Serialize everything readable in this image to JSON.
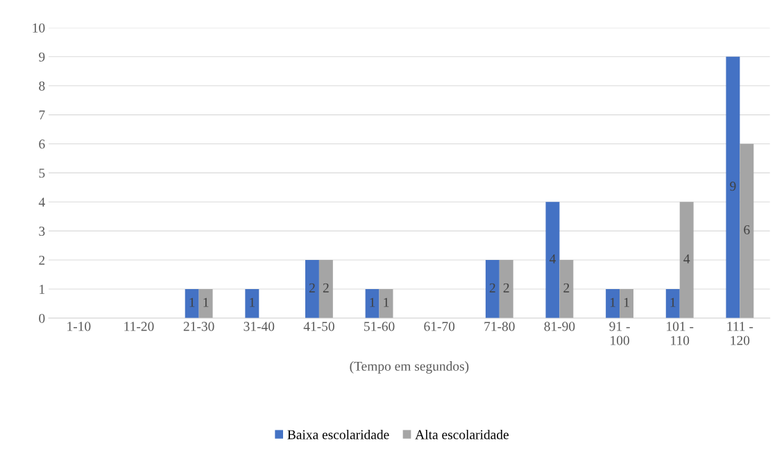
{
  "chart_data": {
    "type": "bar",
    "xlabel": "(Tempo em segundos)",
    "categories": [
      "1-10",
      "11-20",
      "21-30",
      "31-40",
      "41-50",
      "51-60",
      "61-70",
      "71-80",
      "81-90",
      "91 - 100",
      "101 - 110",
      "111 - 120"
    ],
    "series": [
      {
        "name": "Baixa escolaridade",
        "color": "#4472c4",
        "values": [
          0,
          0,
          1,
          1,
          2,
          1,
          0,
          2,
          4,
          1,
          1,
          9
        ],
        "value_labels": [
          null,
          null,
          "1",
          "1",
          "2",
          "1",
          null,
          "2",
          "4",
          "1",
          "1",
          "9"
        ]
      },
      {
        "name": "Alta escolaridade",
        "color": "#a5a5a5",
        "values": [
          0,
          0,
          1,
          0,
          2,
          1,
          0,
          2,
          2,
          1,
          4,
          6
        ],
        "value_labels": [
          null,
          null,
          "1",
          null,
          "2",
          "1",
          null,
          "2",
          "2",
          "1",
          "4",
          "6"
        ]
      }
    ],
    "ylim": [
      0,
      10
    ],
    "yticks": [
      0,
      1,
      2,
      3,
      4,
      5,
      6,
      7,
      8,
      9,
      10
    ],
    "grid": "y",
    "legend": "bottom"
  }
}
